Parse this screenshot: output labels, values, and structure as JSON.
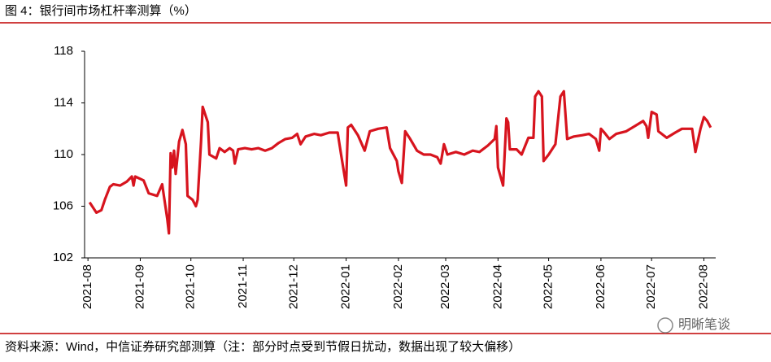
{
  "chart_data": {
    "type": "line",
    "title": "图 4：银行间市场杠杆率测算（%）",
    "source": "资料来源：Wind，中信证券研究部测算（注：部分时点受到节假日扰动，数据出现了较大偏移）",
    "watermark": "明晰笔谈",
    "x": [
      1,
      5,
      8,
      10,
      13,
      15,
      19,
      23,
      26,
      27,
      28,
      33,
      36,
      41,
      44,
      47,
      48,
      49,
      50,
      51,
      52,
      54,
      56,
      58,
      59,
      62,
      64,
      65,
      67,
      68,
      71,
      72,
      76,
      78,
      81,
      84,
      86,
      87,
      89,
      93,
      97,
      101,
      105,
      109,
      113,
      117,
      121,
      124,
      126,
      129,
      134,
      138,
      143,
      148,
      150,
      153,
      154,
      156,
      160,
      164,
      167,
      172,
      177,
      179,
      183,
      184,
      186,
      188,
      191,
      195,
      199,
      203,
      207,
      209,
      211,
      213,
      218,
      223,
      228,
      232,
      237,
      241,
      242,
      243,
      246,
      248,
      249,
      250,
      254,
      257,
      261,
      264,
      265,
      267,
      269,
      270,
      273,
      277,
      280,
      282,
      284,
      288,
      293,
      297,
      301,
      303,
      304,
      306,
      309,
      313,
      319,
      324,
      329,
      331,
      332,
      334,
      337,
      338,
      343,
      348,
      352,
      358,
      360,
      363,
      365,
      367,
      369
    ],
    "series": [
      {
        "name": "银行间市场杠杆率",
        "color": "#d7141e",
        "values": [
          106.3,
          105.5,
          105.7,
          106.5,
          107.5,
          107.7,
          107.6,
          107.9,
          108.3,
          107.6,
          108.3,
          108.0,
          107.0,
          106.8,
          107.7,
          105,
          103.9,
          110.1,
          109,
          110.3,
          108.5,
          111,
          111.9,
          110.8,
          106.8,
          106.5,
          106.0,
          106.5,
          111,
          113.7,
          112.5,
          110,
          109.7,
          110.5,
          110.2,
          110.5,
          110.3,
          109.3,
          110.4,
          110.5,
          110.4,
          110.5,
          110.3,
          110.5,
          110.9,
          111.2,
          111.3,
          111.6,
          110.8,
          111.4,
          111.6,
          111.5,
          111.7,
          111.7,
          110,
          107.6,
          112.1,
          112.3,
          111.5,
          110.3,
          111.8,
          112,
          112.1,
          110.5,
          109.5,
          108.7,
          107.8,
          111.8,
          111.2,
          110.3,
          110,
          110,
          109.8,
          109.3,
          110.8,
          110,
          110.2,
          110,
          110.3,
          110.2,
          110.7,
          111.2,
          112.2,
          109,
          107.6,
          112.8,
          112.5,
          110.4,
          110.4,
          110,
          111.3,
          111.3,
          114.5,
          114.9,
          114.5,
          109.5,
          110,
          110.8,
          114.5,
          114.9,
          111.2,
          111.4,
          111.5,
          111.6,
          111.2,
          110.3,
          112,
          111.7,
          111.2,
          111.6,
          111.8,
          112.2,
          112.6,
          112.2,
          111.3,
          113.3,
          113.1,
          111.8,
          111.3,
          111.7,
          112,
          112,
          110.2,
          112,
          112.9,
          112.6,
          112.1
        ]
      }
    ],
    "xlim": [
      -2,
      372
    ],
    "xticks": [
      {
        "value": 0,
        "label": "2021-08"
      },
      {
        "value": 31,
        "label": "2021-09"
      },
      {
        "value": 61,
        "label": "2021-10"
      },
      {
        "value": 92,
        "label": "2021-11"
      },
      {
        "value": 122,
        "label": "2021-12"
      },
      {
        "value": 153,
        "label": "2022-01"
      },
      {
        "value": 184,
        "label": "2022-02"
      },
      {
        "value": 212,
        "label": "2022-03"
      },
      {
        "value": 243,
        "label": "2022-04"
      },
      {
        "value": 273,
        "label": "2022-05"
      },
      {
        "value": 304,
        "label": "2022-06"
      },
      {
        "value": 334,
        "label": "2022-07"
      },
      {
        "value": 365,
        "label": "2022-08"
      }
    ],
    "ylim": [
      102,
      118
    ],
    "yticks": [
      102,
      106,
      110,
      114,
      118
    ]
  }
}
